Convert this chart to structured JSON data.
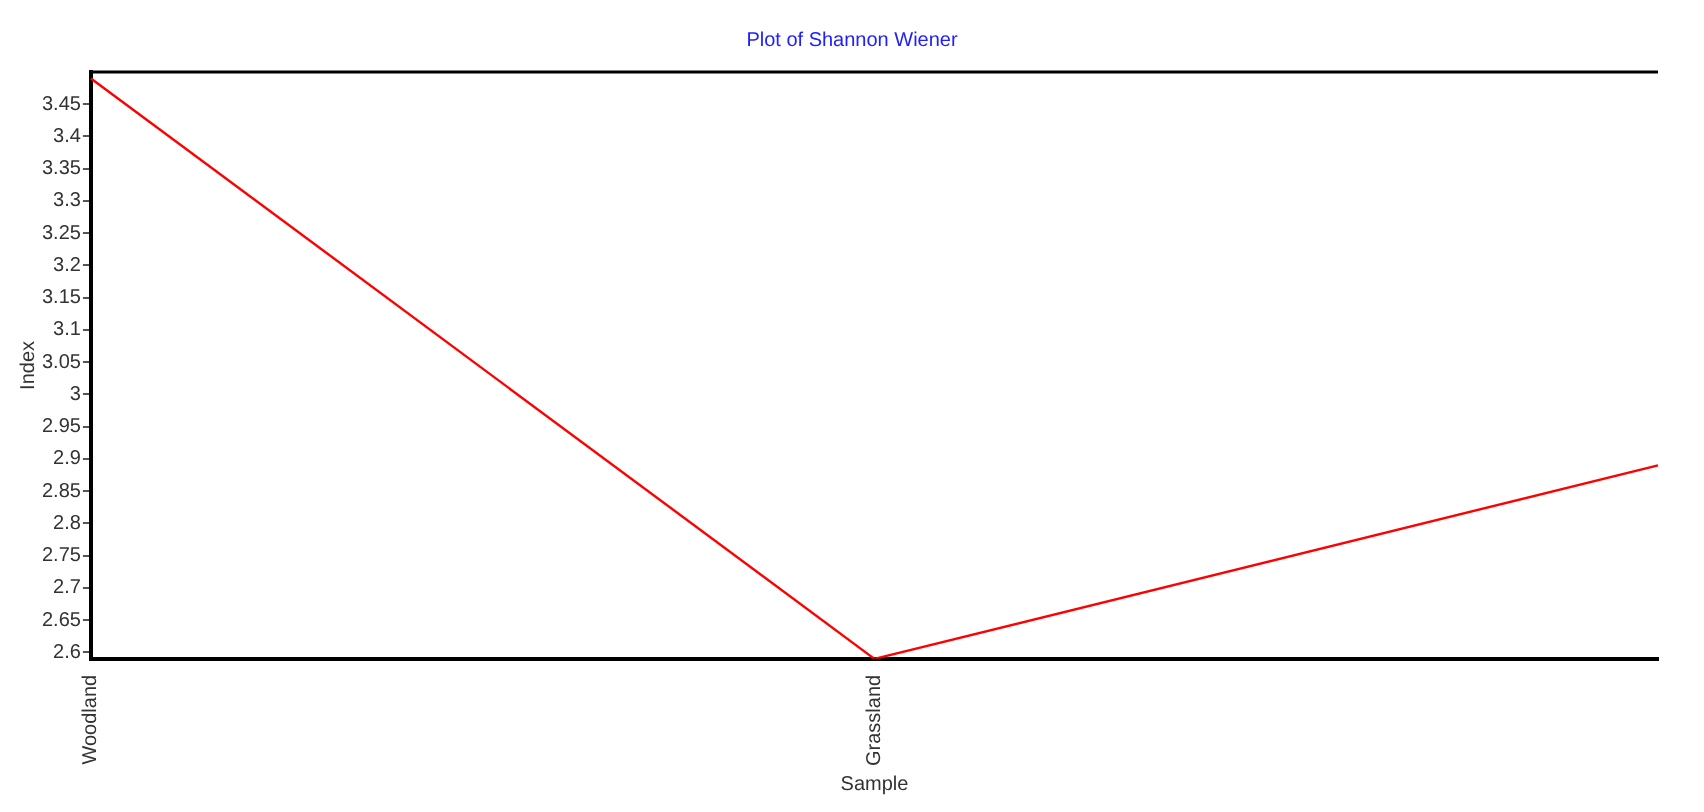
{
  "chart_data": {
    "type": "line",
    "title": "Plot of Shannon Wiener",
    "xlabel": "Sample",
    "ylabel": "Index",
    "categories": [
      "Woodland",
      "Grassland",
      null
    ],
    "series": [
      {
        "color": "#ff0000",
        "values": [
          3.49,
          2.59,
          2.89
        ]
      }
    ],
    "ylim": [
      2.59,
      3.5
    ],
    "yticks": [
      2.6,
      2.65,
      2.7,
      2.75,
      2.8,
      2.85,
      2.9,
      2.95,
      3,
      3.05,
      3.1,
      3.15,
      3.2,
      3.25,
      3.3,
      3.35,
      3.4,
      3.45
    ],
    "grid": false,
    "legend": false,
    "marker": "none",
    "line_style": "solid"
  }
}
